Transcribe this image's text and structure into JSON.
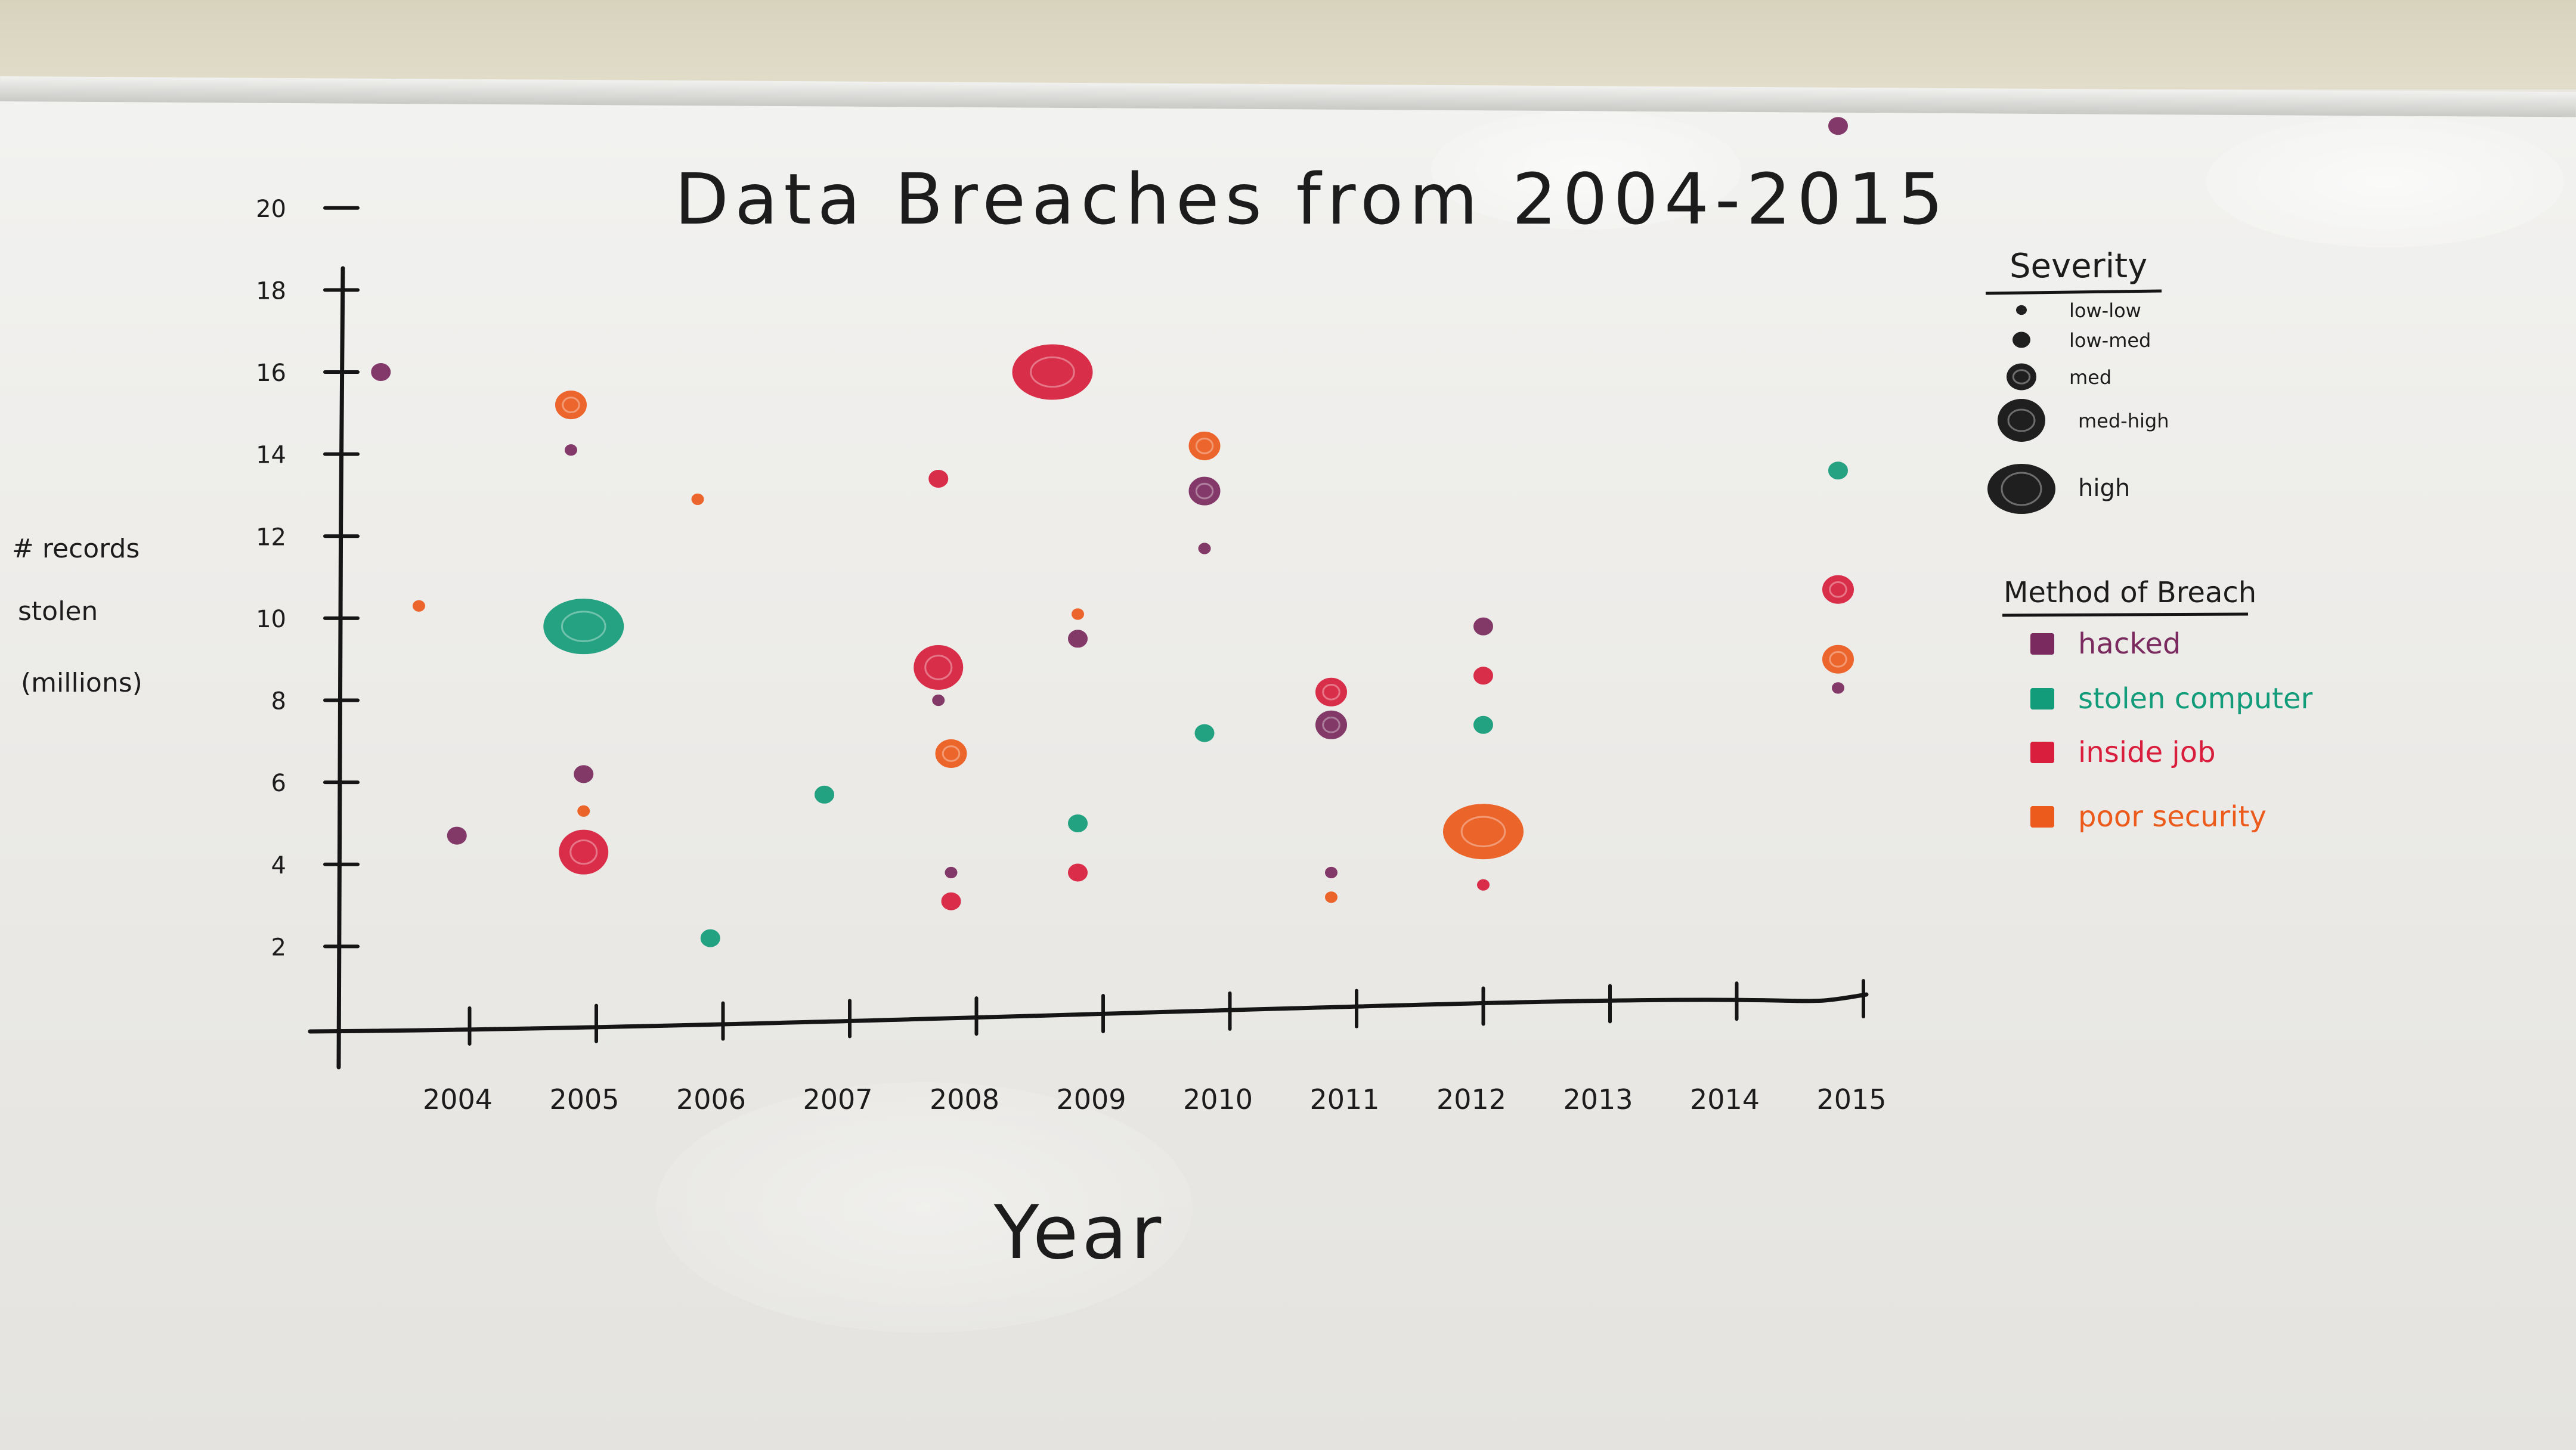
{
  "chart_data": {
    "type": "scatter",
    "title": "Data Breaches from 2004-2015",
    "xlabel": "Year",
    "ylabel_lines": [
      "# records",
      "stolen",
      "(millions)"
    ],
    "x_ticks": [
      2004,
      2005,
      2006,
      2007,
      2008,
      2009,
      2010,
      2011,
      2012,
      2013,
      2014,
      2015
    ],
    "x_tick_labels": [
      "2004",
      "2005",
      "2006",
      "2007",
      "2008",
      "2009",
      "2010",
      "2011",
      "2012",
      "2013",
      "2014",
      "2015"
    ],
    "y_ticks": [
      2,
      4,
      6,
      8,
      10,
      12,
      14,
      16,
      18,
      20
    ],
    "y_tick_labels": [
      "2",
      "4",
      "6",
      "8",
      "10",
      "12",
      "14",
      "16",
      "18",
      "20"
    ],
    "xlim": [
      2003,
      2015
    ],
    "ylim": [
      0,
      21
    ],
    "grid": false,
    "severity_legend": {
      "title": "Severity",
      "items": [
        {
          "label": "low-low",
          "level": 1
        },
        {
          "label": "low-med",
          "level": 2
        },
        {
          "label": "med",
          "level": 3
        },
        {
          "label": "med-high",
          "level": 4
        },
        {
          "label": "high",
          "level": 5
        }
      ]
    },
    "method_legend": {
      "title": "Method of Breach",
      "items": [
        {
          "label": "hacked",
          "key": "hacked",
          "color": "#7a2a5e"
        },
        {
          "label": "stolen computer",
          "key": "stolen",
          "color": "#139c7a"
        },
        {
          "label": "inside job",
          "key": "inside",
          "color": "#d81e3c"
        },
        {
          "label": "poor security",
          "key": "poor",
          "color": "#ec5a1c"
        }
      ]
    },
    "points": [
      {
        "x": 2003.3,
        "y": 16.0,
        "method": "hacked",
        "severity": 2
      },
      {
        "x": 2003.6,
        "y": 10.3,
        "method": "poor",
        "severity": 1
      },
      {
        "x": 2003.9,
        "y": 4.7,
        "method": "hacked",
        "severity": 2
      },
      {
        "x": 2004.8,
        "y": 15.2,
        "method": "poor",
        "severity": 3
      },
      {
        "x": 2004.8,
        "y": 14.1,
        "method": "hacked",
        "severity": 1
      },
      {
        "x": 2004.9,
        "y": 9.8,
        "method": "stolen",
        "severity": 5
      },
      {
        "x": 2004.9,
        "y": 6.2,
        "method": "hacked",
        "severity": 2
      },
      {
        "x": 2004.9,
        "y": 5.3,
        "method": "poor",
        "severity": 1
      },
      {
        "x": 2004.9,
        "y": 4.3,
        "method": "inside",
        "severity": 4
      },
      {
        "x": 2005.8,
        "y": 12.9,
        "method": "poor",
        "severity": 1
      },
      {
        "x": 2005.9,
        "y": 2.2,
        "method": "stolen",
        "severity": 2
      },
      {
        "x": 2006.8,
        "y": 5.7,
        "method": "stolen",
        "severity": 2
      },
      {
        "x": 2007.7,
        "y": 13.4,
        "method": "inside",
        "severity": 2
      },
      {
        "x": 2007.7,
        "y": 8.8,
        "method": "inside",
        "severity": 4
      },
      {
        "x": 2007.7,
        "y": 8.0,
        "method": "hacked",
        "severity": 1
      },
      {
        "x": 2007.8,
        "y": 6.7,
        "method": "poor",
        "severity": 3
      },
      {
        "x": 2007.8,
        "y": 3.8,
        "method": "hacked",
        "severity": 1
      },
      {
        "x": 2007.8,
        "y": 3.1,
        "method": "inside",
        "severity": 2
      },
      {
        "x": 2008.6,
        "y": 16.0,
        "method": "inside",
        "severity": 5
      },
      {
        "x": 2008.8,
        "y": 10.1,
        "method": "poor",
        "severity": 1
      },
      {
        "x": 2008.8,
        "y": 9.5,
        "method": "hacked",
        "severity": 2
      },
      {
        "x": 2008.8,
        "y": 5.0,
        "method": "stolen",
        "severity": 2
      },
      {
        "x": 2008.8,
        "y": 3.8,
        "method": "inside",
        "severity": 2
      },
      {
        "x": 2009.8,
        "y": 14.2,
        "method": "poor",
        "severity": 3
      },
      {
        "x": 2009.8,
        "y": 13.1,
        "method": "hacked",
        "severity": 3
      },
      {
        "x": 2009.8,
        "y": 11.7,
        "method": "hacked",
        "severity": 1
      },
      {
        "x": 2009.8,
        "y": 7.2,
        "method": "stolen",
        "severity": 2
      },
      {
        "x": 2010.8,
        "y": 8.2,
        "method": "inside",
        "severity": 3
      },
      {
        "x": 2010.8,
        "y": 7.4,
        "method": "hacked",
        "severity": 3
      },
      {
        "x": 2010.8,
        "y": 3.8,
        "method": "hacked",
        "severity": 1
      },
      {
        "x": 2010.8,
        "y": 3.2,
        "method": "poor",
        "severity": 1
      },
      {
        "x": 2012.0,
        "y": 9.8,
        "method": "hacked",
        "severity": 2
      },
      {
        "x": 2012.0,
        "y": 8.6,
        "method": "inside",
        "severity": 2
      },
      {
        "x": 2012.0,
        "y": 7.4,
        "method": "stolen",
        "severity": 2
      },
      {
        "x": 2012.0,
        "y": 4.8,
        "method": "poor",
        "severity": 5
      },
      {
        "x": 2012.0,
        "y": 3.5,
        "method": "inside",
        "severity": 1
      },
      {
        "x": 2014.8,
        "y": 22.0,
        "method": "hacked",
        "severity": 2
      },
      {
        "x": 2014.8,
        "y": 13.6,
        "method": "stolen",
        "severity": 2
      },
      {
        "x": 2014.8,
        "y": 10.7,
        "method": "inside",
        "severity": 3
      },
      {
        "x": 2014.8,
        "y": 9.0,
        "method": "poor",
        "severity": 3
      },
      {
        "x": 2014.8,
        "y": 8.3,
        "method": "hacked",
        "severity": 1
      }
    ]
  }
}
